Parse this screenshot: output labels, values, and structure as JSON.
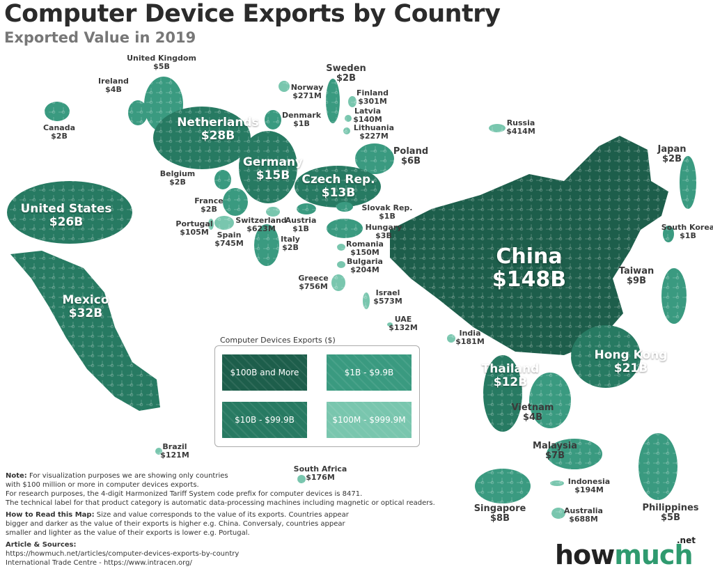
{
  "header": {
    "title": "Computer Device Exports by Country",
    "subtitle": "Exported Value in 2019"
  },
  "tier_colors": {
    "100B_plus": "#1d5e4b",
    "10B_99B": "#277a62",
    "1B_9B": "#3a9a80",
    "100M_999M": "#79c6ae"
  },
  "countries": [
    {
      "name": "United Kingdom",
      "value": "$5B",
      "tier": "1B_9B"
    },
    {
      "name": "Ireland",
      "value": "$4B",
      "tier": "1B_9B"
    },
    {
      "name": "Canada",
      "value": "$2B",
      "tier": "1B_9B"
    },
    {
      "name": "Netherlands",
      "value": "$28B",
      "tier": "10B_99B"
    },
    {
      "name": "Germany",
      "value": "$15B",
      "tier": "10B_99B"
    },
    {
      "name": "Denmark",
      "value": "$1B",
      "tier": "1B_9B"
    },
    {
      "name": "Norway",
      "value": "$271M",
      "tier": "100M_999M"
    },
    {
      "name": "Sweden",
      "value": "$2B",
      "tier": "1B_9B"
    },
    {
      "name": "Finland",
      "value": "$301M",
      "tier": "100M_999M"
    },
    {
      "name": "Latvia",
      "value": "$140M",
      "tier": "100M_999M"
    },
    {
      "name": "Lithuania",
      "value": "$227M",
      "tier": "100M_999M"
    },
    {
      "name": "Poland",
      "value": "$6B",
      "tier": "1B_9B"
    },
    {
      "name": "Czech Rep.",
      "value": "$13B",
      "tier": "10B_99B"
    },
    {
      "name": "Belgium",
      "value": "$2B",
      "tier": "1B_9B"
    },
    {
      "name": "France",
      "value": "$2B",
      "tier": "1B_9B"
    },
    {
      "name": "Portugal",
      "value": "$105M",
      "tier": "100M_999M"
    },
    {
      "name": "Spain",
      "value": "$745M",
      "tier": "100M_999M"
    },
    {
      "name": "Switzerland",
      "value": "$623M",
      "tier": "100M_999M"
    },
    {
      "name": "Austria",
      "value": "$1B",
      "tier": "1B_9B"
    },
    {
      "name": "Italy",
      "value": "$2B",
      "tier": "1B_9B"
    },
    {
      "name": "Slovak Rep.",
      "value": "$1B",
      "tier": "1B_9B"
    },
    {
      "name": "Hungary",
      "value": "$3B",
      "tier": "1B_9B"
    },
    {
      "name": "Romania",
      "value": "$150M",
      "tier": "100M_999M"
    },
    {
      "name": "Bulgaria",
      "value": "$204M",
      "tier": "100M_999M"
    },
    {
      "name": "Greece",
      "value": "$756M",
      "tier": "100M_999M"
    },
    {
      "name": "Israel",
      "value": "$573M",
      "tier": "100M_999M"
    },
    {
      "name": "UAE",
      "value": "$132M",
      "tier": "100M_999M"
    },
    {
      "name": "India",
      "value": "$181M",
      "tier": "100M_999M"
    },
    {
      "name": "Russia",
      "value": "$414M",
      "tier": "100M_999M"
    },
    {
      "name": "United States",
      "value": "$26B",
      "tier": "10B_99B"
    },
    {
      "name": "Mexico",
      "value": "$32B",
      "tier": "10B_99B"
    },
    {
      "name": "Brazil",
      "value": "$121M",
      "tier": "100M_999M"
    },
    {
      "name": "South Africa",
      "value": "$176M",
      "tier": "100M_999M"
    },
    {
      "name": "China",
      "value": "$148B",
      "tier": "100B_plus"
    },
    {
      "name": "Japan",
      "value": "$2B",
      "tier": "1B_9B"
    },
    {
      "name": "South Korea",
      "value": "$1B",
      "tier": "1B_9B"
    },
    {
      "name": "Taiwan",
      "value": "$9B",
      "tier": "1B_9B"
    },
    {
      "name": "Hong Kong",
      "value": "$21B",
      "tier": "10B_99B"
    },
    {
      "name": "Thailand",
      "value": "$12B",
      "tier": "10B_99B"
    },
    {
      "name": "Vietnam",
      "value": "$4B",
      "tier": "1B_9B"
    },
    {
      "name": "Malaysia",
      "value": "$7B",
      "tier": "1B_9B"
    },
    {
      "name": "Singapore",
      "value": "$8B",
      "tier": "1B_9B"
    },
    {
      "name": "Indonesia",
      "value": "$194M",
      "tier": "100M_999M"
    },
    {
      "name": "Australia",
      "value": "$688M",
      "tier": "100M_999M"
    },
    {
      "name": "Philippines",
      "value": "$5B",
      "tier": "1B_9B"
    }
  ],
  "legend": {
    "title": "Computer Devices Exports ($)",
    "items": [
      {
        "label": "$100B and More",
        "tier": "100B_plus"
      },
      {
        "label": "$1B - $9.9B",
        "tier": "1B_9B"
      },
      {
        "label": "$10B - $99.9B",
        "tier": "10B_99B"
      },
      {
        "label": "$100M - $999.9M",
        "tier": "100M_999M"
      }
    ]
  },
  "notes": {
    "note_label": "Note:",
    "note_text": " For visualization purposes we are showing only countries",
    "note_text2": "with $100 million or more in computer devices exports.",
    "research": "For research purposes, the 4-digit Harmonized Tariff System code prefix for computer devices is 8471.",
    "technical": "The technical label for that product category is automatic data-processing machines including magnetic or optical readers.",
    "howto_label": "How to Read this Map:",
    "howto_text": " Size and value corresponds to the value of its exports. Countries appear",
    "howto_text2": "bigger and darker as the value of their exports is higher e.g. China. Conversaly, countries appear",
    "howto_text3": "smaller and lighter as the value of their exports is lower e.g. Portugal.",
    "sources_label": "Article & Sources:",
    "source1": "https://howmuch.net/articles/computer-devices-exports-by-country",
    "source2": "International Trade Centre - https://www.intracen.org/"
  },
  "logo": {
    "text_a": "how",
    "text_b": "much",
    "suffix": ".net"
  }
}
